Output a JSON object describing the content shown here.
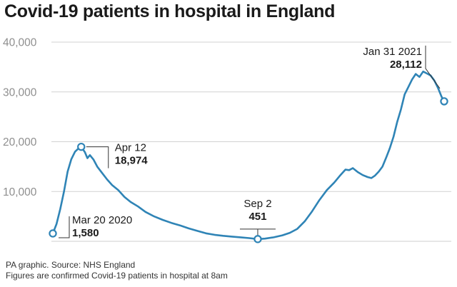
{
  "title": "Covid-19 patients in hospital in England",
  "source": "PA graphic. Source: NHS England",
  "note": "Figures are confirmed Covid-19 patients in hospital at 8am",
  "chart_data": {
    "type": "line",
    "title": "Covid-19 patients in hospital in England",
    "xlabel": "",
    "ylabel": "",
    "ylim": [
      0,
      40000
    ],
    "yticks": [
      10000,
      20000,
      30000,
      40000
    ],
    "ytick_labels": [
      "10,000",
      "20,000",
      "30,000",
      "40,000"
    ],
    "grid": "horizontal",
    "color": "#2f84b6",
    "x_range": [
      "2020-03-20",
      "2021-01-31"
    ],
    "series": [
      {
        "points": [
          [
            "2020-03-20",
            1580
          ],
          [
            "2020-03-23",
            3500
          ],
          [
            "2020-03-26",
            6500
          ],
          [
            "2020-03-29",
            10000
          ],
          [
            "2020-04-01",
            14000
          ],
          [
            "2020-04-04",
            16500
          ],
          [
            "2020-04-07",
            18000
          ],
          [
            "2020-04-10",
            18700
          ],
          [
            "2020-04-12",
            18974
          ],
          [
            "2020-04-15",
            17900
          ],
          [
            "2020-04-17",
            16700
          ],
          [
            "2020-04-19",
            17300
          ],
          [
            "2020-04-22",
            16400
          ],
          [
            "2020-04-25",
            15000
          ],
          [
            "2020-04-29",
            13700
          ],
          [
            "2020-05-03",
            12400
          ],
          [
            "2020-05-07",
            11300
          ],
          [
            "2020-05-12",
            10300
          ],
          [
            "2020-05-17",
            8900
          ],
          [
            "2020-05-22",
            7900
          ],
          [
            "2020-05-28",
            7000
          ],
          [
            "2020-06-03",
            5900
          ],
          [
            "2020-06-10",
            5000
          ],
          [
            "2020-06-17",
            4300
          ],
          [
            "2020-06-24",
            3700
          ],
          [
            "2020-07-01",
            3200
          ],
          [
            "2020-07-08",
            2600
          ],
          [
            "2020-07-15",
            2100
          ],
          [
            "2020-07-22",
            1600
          ],
          [
            "2020-07-29",
            1300
          ],
          [
            "2020-08-05",
            1100
          ],
          [
            "2020-08-12",
            950
          ],
          [
            "2020-08-19",
            800
          ],
          [
            "2020-08-26",
            650
          ],
          [
            "2020-09-02",
            451
          ],
          [
            "2020-09-08",
            550
          ],
          [
            "2020-09-15",
            800
          ],
          [
            "2020-09-22",
            1200
          ],
          [
            "2020-09-28",
            1700
          ],
          [
            "2020-10-04",
            2500
          ],
          [
            "2020-10-10",
            4000
          ],
          [
            "2020-10-16",
            6000
          ],
          [
            "2020-10-22",
            8300
          ],
          [
            "2020-10-28",
            10300
          ],
          [
            "2020-11-03",
            11800
          ],
          [
            "2020-11-08",
            13300
          ],
          [
            "2020-11-12",
            14400
          ],
          [
            "2020-11-15",
            14300
          ],
          [
            "2020-11-18",
            14700
          ],
          [
            "2020-11-22",
            13900
          ],
          [
            "2020-11-26",
            13300
          ],
          [
            "2020-11-30",
            12900
          ],
          [
            "2020-12-03",
            12700
          ],
          [
            "2020-12-06",
            13200
          ],
          [
            "2020-12-09",
            14000
          ],
          [
            "2020-12-12",
            15000
          ],
          [
            "2020-12-15",
            16800
          ],
          [
            "2020-12-18",
            18700
          ],
          [
            "2020-12-21",
            21000
          ],
          [
            "2020-12-24",
            24000
          ],
          [
            "2020-12-27",
            26500
          ],
          [
            "2020-12-30",
            29500
          ],
          [
            "2021-01-02",
            31000
          ],
          [
            "2021-01-05",
            32500
          ],
          [
            "2021-01-08",
            33600
          ],
          [
            "2021-01-11",
            33000
          ],
          [
            "2021-01-14",
            34100
          ],
          [
            "2021-01-17",
            33700
          ],
          [
            "2021-01-20",
            33300
          ],
          [
            "2021-01-23",
            32300
          ],
          [
            "2021-01-26",
            30800
          ],
          [
            "2021-01-29",
            29000
          ],
          [
            "2021-01-31",
            28112
          ]
        ]
      }
    ],
    "annotations": [
      {
        "date": "2020-03-20",
        "label": "Mar 20 2020",
        "value": "1,580",
        "y": 1580
      },
      {
        "date": "2020-04-12",
        "label": "Apr 12",
        "value": "18,974",
        "y": 18974
      },
      {
        "date": "2020-09-02",
        "label": "Sep 2",
        "value": "451",
        "y": 451
      },
      {
        "date": "2021-01-31",
        "label": "Jan 31 2021",
        "value": "28,112",
        "y": 28112
      }
    ]
  }
}
